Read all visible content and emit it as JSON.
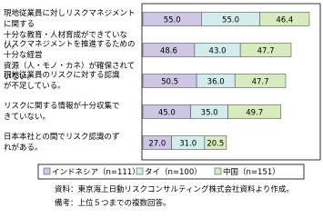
{
  "chart_data": {
    "type": "stacked-bar-horizontal",
    "categories": [
      "現地従業員に対しリスクマネジメントに関する\n十分な教育・人材育成ができていない。",
      "リスクマネジメントを推進するための十分な経営\n資源（人・モノ・カネ）が確保されていない。",
      "現地従業員のリスクに対する認識\nが不足している。",
      "リスクに関する情報が十分収集で\nきていない。",
      "日本本社との間でリスク認識のず\nれがある。"
    ],
    "series": [
      {
        "name": "インドネシア（n=111）",
        "color": "#cdc6e4",
        "values": [
          55.0,
          48.6,
          50.5,
          45.0,
          27.0
        ],
        "value_labels": [
          "55.0",
          "48.6",
          "50.5",
          "45.0",
          "27.0"
        ]
      },
      {
        "name": "タイ（n=100）",
        "color": "#d3ecec",
        "values": [
          55.0,
          43.0,
          36.0,
          35.0,
          31.0
        ],
        "value_labels": [
          "55.0",
          "43.0",
          "36.0",
          "35.0",
          "31.0"
        ]
      },
      {
        "name": "中国（n=151）",
        "color": "#d8ebbf",
        "values": [
          46.4,
          47.7,
          47.7,
          49.7,
          20.5
        ],
        "value_labels": [
          "46.4",
          "47.7",
          "47.7",
          "49.7",
          "20.5"
        ]
      }
    ],
    "notes": [
      "資料：東京海上日動リスクコンサルティング株式会社資料より作成。",
      "備考：上位５つまでの複数回答。"
    ]
  }
}
